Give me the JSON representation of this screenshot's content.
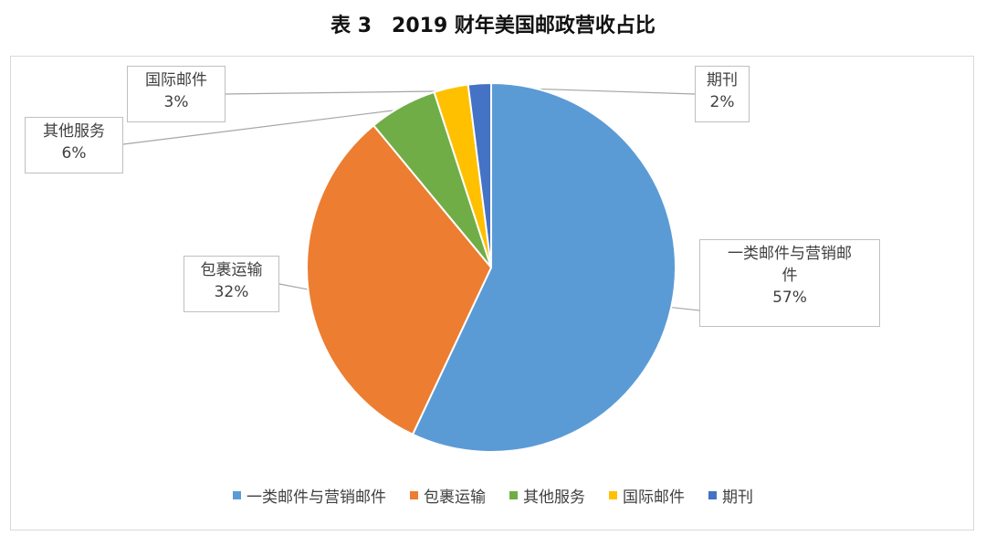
{
  "title": "表 3　2019 财年美国邮政营收占比",
  "chart_data": {
    "type": "pie",
    "categories": [
      "一类邮件与营销邮件",
      "包裹运输",
      "其他服务",
      "国际邮件",
      "期刊"
    ],
    "values": [
      57,
      32,
      6,
      3,
      2
    ],
    "labels": [
      "57%",
      "32%",
      "6%",
      "3%",
      "2%"
    ],
    "colors": [
      "#5b9bd5",
      "#ed7d31",
      "#70ad47",
      "#ffc000",
      "#4472c4"
    ],
    "legend_placement": "bottom",
    "start_angle_deg": 0,
    "direction": "clockwise"
  },
  "callouts": [
    {
      "lines": [
        "一类邮件与营销邮",
        "件"
      ],
      "value": "57%"
    },
    {
      "lines": [
        "包裹运输"
      ],
      "value": "32%"
    },
    {
      "lines": [
        "其他服务"
      ],
      "value": "6%"
    },
    {
      "lines": [
        "国际邮件"
      ],
      "value": "3%"
    },
    {
      "lines": [
        "期刊"
      ],
      "value": "2%"
    }
  ],
  "legend": [
    "一类邮件与营销邮件",
    "包裹运输",
    "其他服务",
    "国际邮件",
    "期刊"
  ]
}
